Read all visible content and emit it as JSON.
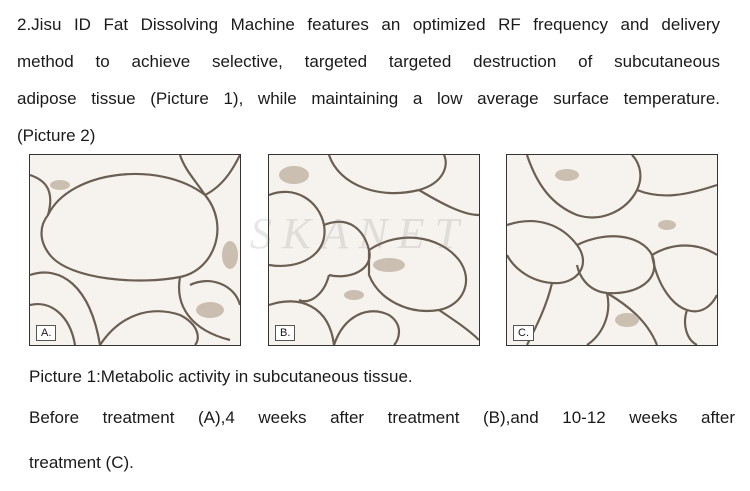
{
  "intro": {
    "line1": "2.Jisu ID Fat Dissolving Machine features an optimized RF frequency and delivery",
    "line2": "method to achieve selective, targeted targeted destruction of subcutaneous",
    "line3": "adipose tissue (Picture 1), while maintaining a low average surface temperature.",
    "line4": "(Picture 2)"
  },
  "panels": [
    {
      "label": "A."
    },
    {
      "label": "B."
    },
    {
      "label": "C."
    }
  ],
  "watermark": "SKANET",
  "caption": {
    "line1": "Picture 1:Metabolic activity in subcutaneous tissue.",
    "line2": "Before treatment (A),4 weeks after treatment (B),and 10-12 weeks after",
    "line3": "treatment (C)."
  }
}
